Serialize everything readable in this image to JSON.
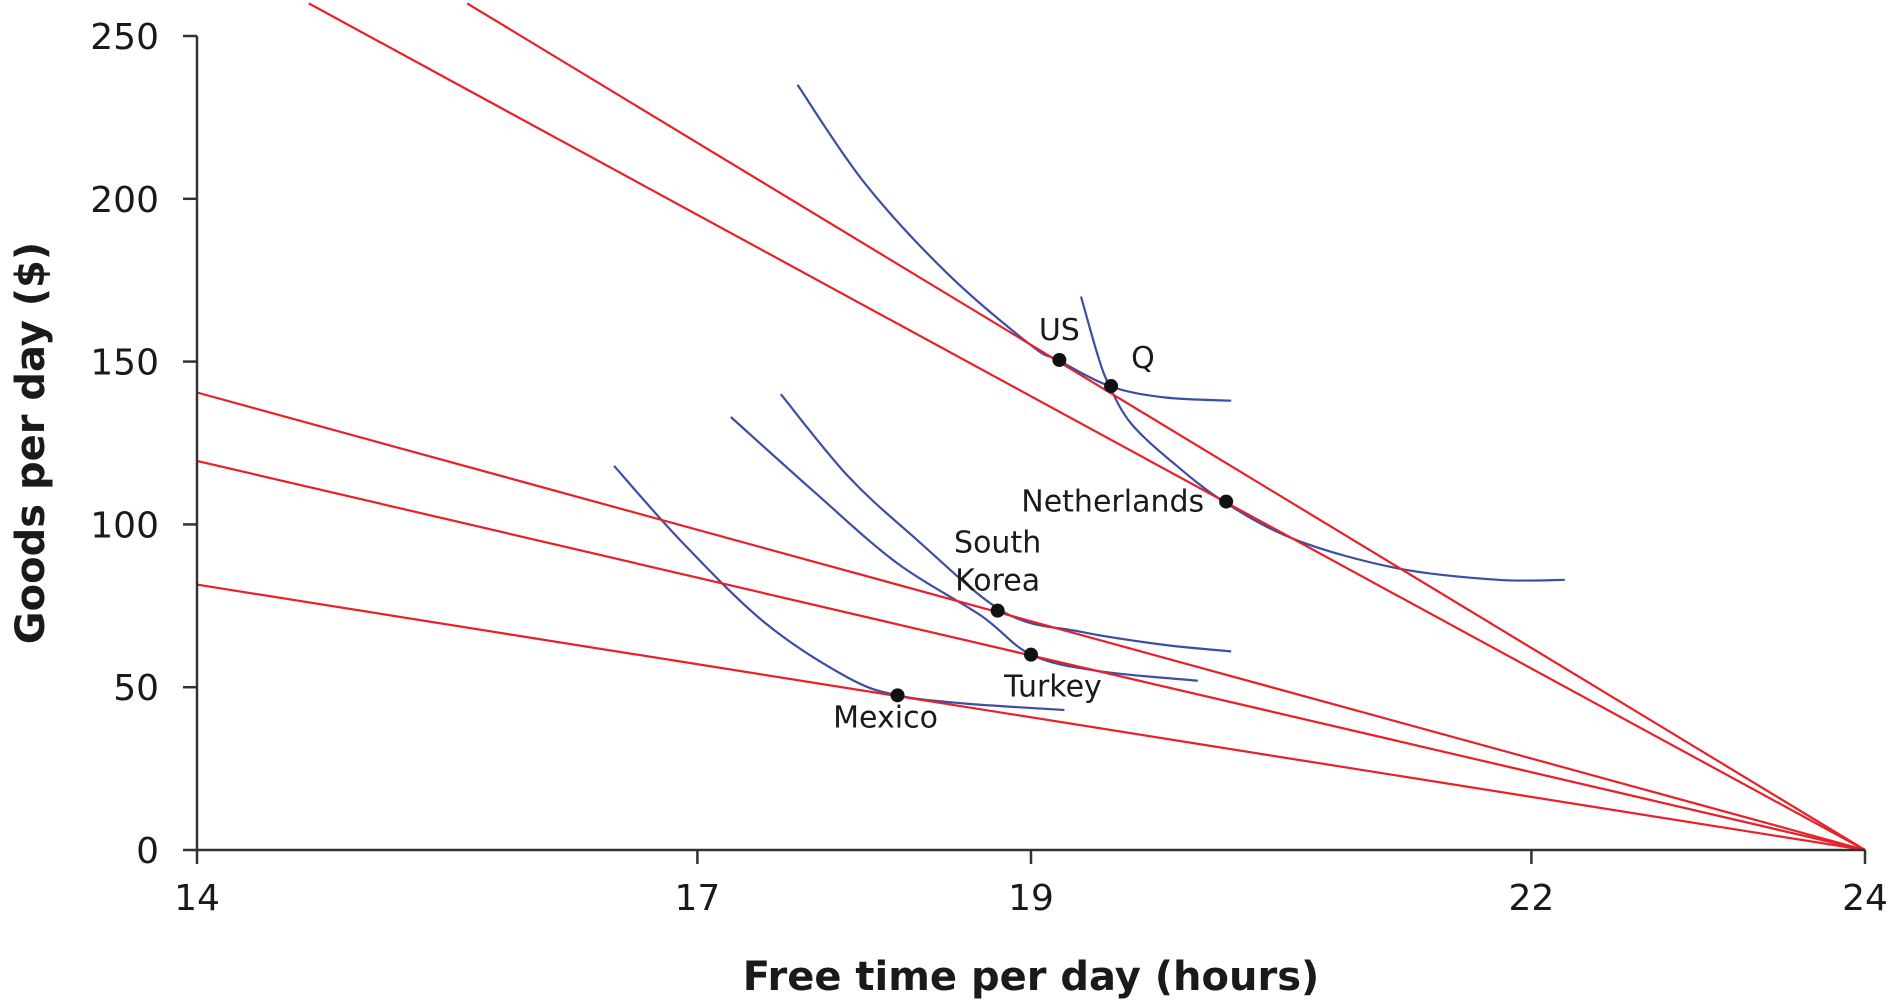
{
  "colors": {
    "budget_line": "#e8202a",
    "indifference_curve": "#3b4ea3",
    "point": "#111111",
    "axis": "#333333"
  },
  "chart_data": {
    "type": "line",
    "title": "",
    "xlabel": "Free time per day (hours)",
    "ylabel": "Goods per day ($)",
    "xlim": [
      14,
      24
    ],
    "ylim": [
      0,
      250
    ],
    "x_ticks": [
      {
        "value": 14,
        "label": "14"
      },
      {
        "value": 17,
        "label": "17"
      },
      {
        "value": 19,
        "label": "19"
      },
      {
        "value": 22,
        "label": "22"
      },
      {
        "value": 24,
        "label": "24"
      }
    ],
    "y_ticks": [
      {
        "value": 0,
        "label": "0"
      },
      {
        "value": 50,
        "label": "50"
      },
      {
        "value": 100,
        "label": "100"
      },
      {
        "value": 150,
        "label": "150"
      },
      {
        "value": 200,
        "label": "200"
      },
      {
        "value": 250,
        "label": "250"
      }
    ],
    "budget_lines": [
      {
        "points": [
          [
            14.67,
            260
          ],
          [
            24,
            0
          ]
        ]
      },
      {
        "points": [
          [
            15.62,
            260
          ],
          [
            24,
            0
          ]
        ]
      },
      {
        "points": [
          [
            14,
            140.5
          ],
          [
            24,
            0
          ]
        ]
      },
      {
        "points": [
          [
            14,
            119.5
          ],
          [
            24,
            0
          ]
        ]
      },
      {
        "points": [
          [
            14,
            81.5
          ],
          [
            24,
            0
          ]
        ]
      }
    ],
    "indifference_curves": [
      {
        "points": [
          [
            17.6,
            235
          ],
          [
            18.0,
            205
          ],
          [
            18.5,
            177
          ],
          [
            19.0,
            155
          ],
          [
            19.16,
            150.5
          ],
          [
            19.47,
            142.5
          ],
          [
            19.8,
            139
          ],
          [
            20.2,
            138
          ]
        ]
      },
      {
        "points": [
          [
            19.3,
            170
          ],
          [
            19.4,
            152
          ],
          [
            19.47,
            142.5
          ],
          [
            19.6,
            131
          ],
          [
            19.85,
            119
          ],
          [
            20.17,
            106.5
          ],
          [
            20.6,
            95
          ],
          [
            21.2,
            86.5
          ],
          [
            21.8,
            83
          ],
          [
            22.2,
            83
          ]
        ]
      },
      {
        "points": [
          [
            17.5,
            140
          ],
          [
            17.9,
            115
          ],
          [
            18.3,
            96
          ],
          [
            18.84,
            73
          ],
          [
            19.3,
            67
          ],
          [
            19.8,
            63
          ],
          [
            20.2,
            61
          ]
        ]
      },
      {
        "points": [
          [
            17.2,
            133
          ],
          [
            17.7,
            110
          ],
          [
            18.2,
            88
          ],
          [
            18.7,
            72
          ],
          [
            19.0,
            60
          ],
          [
            19.4,
            55
          ],
          [
            20.0,
            52
          ]
        ]
      },
      {
        "points": [
          [
            16.5,
            118
          ],
          [
            16.9,
            95
          ],
          [
            17.4,
            70
          ],
          [
            17.9,
            53
          ],
          [
            18.2,
            47.5
          ],
          [
            18.6,
            45
          ],
          [
            19.2,
            43
          ]
        ]
      }
    ],
    "points": [
      {
        "name": "US",
        "x": 19.17,
        "y": 150.5,
        "label_lines": [
          "US"
        ],
        "label_anchor": "top"
      },
      {
        "name": "Q",
        "x": 19.48,
        "y": 142.5,
        "label_lines": [
          "Q"
        ],
        "label_anchor": "top-right"
      },
      {
        "name": "Netherlands",
        "x": 20.17,
        "y": 107,
        "label_lines": [
          "Netherlands"
        ],
        "label_anchor": "left"
      },
      {
        "name": "South Korea",
        "x": 18.8,
        "y": 73.5,
        "label_lines": [
          "South",
          "Korea"
        ],
        "label_anchor": "top"
      },
      {
        "name": "Turkey",
        "x": 19.0,
        "y": 60,
        "label_lines": [
          "Turkey"
        ],
        "label_anchor": "bottom"
      },
      {
        "name": "Mexico",
        "x": 18.2,
        "y": 47.5,
        "label_lines": [
          "Mexico"
        ],
        "label_anchor": "bottom-left"
      }
    ]
  }
}
